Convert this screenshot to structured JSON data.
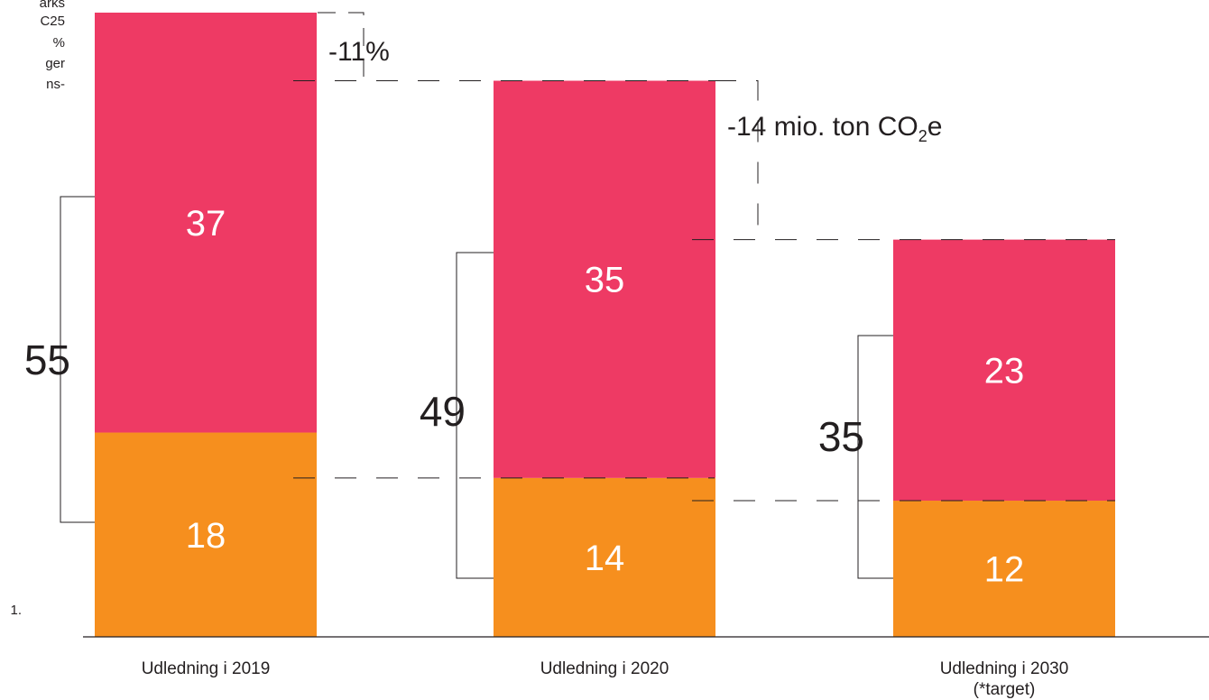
{
  "chart_data": {
    "type": "bar",
    "stacked": true,
    "categories": [
      "Udledning i 2019",
      "Udledning i 2020",
      "Udledning i 2030"
    ],
    "category_note": [
      "",
      "",
      "(*target)"
    ],
    "series": [
      {
        "values": [
          18,
          14,
          12
        ],
        "color": "#f68f1e"
      },
      {
        "values": [
          37,
          35,
          23
        ],
        "color": "#ee3a64"
      }
    ],
    "totals": [
      55,
      49,
      35
    ],
    "annotations": [
      {
        "text": "-11%",
        "between": [
          0,
          1
        ]
      },
      {
        "text_main": "-14 mio. ton CO",
        "text_sub": "2",
        "text_tail": "e",
        "between": [
          1,
          2
        ]
      }
    ],
    "ylim": [
      0,
      55
    ],
    "grid": false,
    "legend": "none"
  },
  "clipped_left_text": [
    "arks",
    "C25",
    "%",
    "ger",
    "ns-",
    "1."
  ]
}
